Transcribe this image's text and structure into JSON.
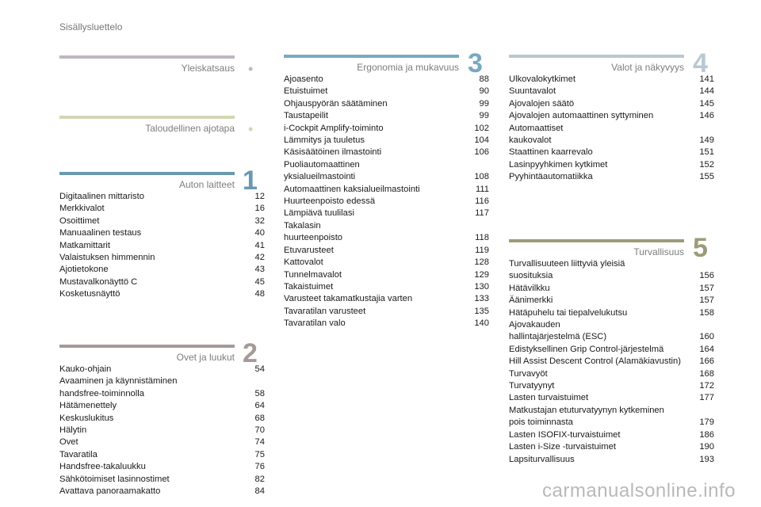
{
  "header": {
    "label": "Sisällysluettelo"
  },
  "sections": {
    "yleiskatsaus": {
      "title": "Yleiskatsaus",
      "marker": "•",
      "color": "#bfb6c0"
    },
    "taloudellinen": {
      "title": "Taloudellinen ajotapa",
      "marker": "•",
      "color": "#d4d6b4"
    },
    "auton_laitteet": {
      "title": "Auton laitteet",
      "number": "1",
      "color": "#6a98b0",
      "entries": [
        {
          "title": "Digitaalinen mittaristo",
          "page": "12"
        },
        {
          "title": "Merkkivalot",
          "page": "16"
        },
        {
          "title": "Osoittimet",
          "page": "32"
        },
        {
          "title": "Manuaalinen testaus",
          "page": "40"
        },
        {
          "title": "Matkamittarit",
          "page": "41"
        },
        {
          "title": "Valaistuksen himmennin",
          "page": "42"
        },
        {
          "title": "Ajotietokone",
          "page": "43"
        },
        {
          "title": "Mustavalkonäyttö C",
          "page": "45"
        },
        {
          "title": "Kosketusnäyttö",
          "page": "48"
        }
      ]
    },
    "ovet_ja_luukut": {
      "title": "Ovet ja luukut",
      "number": "2",
      "color": "#a59a97",
      "entries": [
        {
          "title": "Kauko-ohjain",
          "page": "54"
        },
        {
          "title": "Avaaminen ja käynnistäminen\n   handsfree-toiminnolla",
          "page": "58"
        },
        {
          "title": "Hätämenettely",
          "page": "64"
        },
        {
          "title": "Keskuslukitus",
          "page": "68"
        },
        {
          "title": "Hälytin",
          "page": "70"
        },
        {
          "title": "Ovet",
          "page": "74"
        },
        {
          "title": "Tavaratila",
          "page": "75"
        },
        {
          "title": "Handsfree-takaluukku",
          "page": "76"
        },
        {
          "title": "Sähkötoimiset lasinnostimet",
          "page": "82"
        },
        {
          "title": "Avattava panoraamakatto",
          "page": "84"
        }
      ]
    },
    "ergonomia": {
      "title": "Ergonomia ja mukavuus",
      "number": "3",
      "color": "#7aa8c2",
      "entries": [
        {
          "title": "Ajoasento",
          "page": "88"
        },
        {
          "title": "Etuistuimet",
          "page": "90"
        },
        {
          "title": "Ohjauspyörän säätäminen",
          "page": "99"
        },
        {
          "title": "Taustapeilit",
          "page": "99"
        },
        {
          "title": "i-Cockpit Amplify-toiminto",
          "page": "102"
        },
        {
          "title": "Lämmitys ja tuuletus",
          "page": "104"
        },
        {
          "title": "Käsisäätöinen ilmastointi",
          "page": "106"
        },
        {
          "title": "Puoliautomaattinen\n   yksialueilmastointi",
          "page": "108"
        },
        {
          "title": "Automaattinen kaksialueilmastointi",
          "page": "111"
        },
        {
          "title": "Huurteenpoisto edessä",
          "page": "116"
        },
        {
          "title": "Lämpiävä tuulilasi",
          "page": "117"
        },
        {
          "title": "Takalasin\n   huurteenpoisto",
          "page": "118"
        },
        {
          "title": "Etuvarusteet",
          "page": "119"
        },
        {
          "title": "Kattovalot",
          "page": "128"
        },
        {
          "title": "Tunnelmavalot",
          "page": "129"
        },
        {
          "title": "Takaistuimet",
          "page": "130"
        },
        {
          "title": "Varusteet takamatkustajia varten",
          "page": "133"
        },
        {
          "title": "Tavaratilan varusteet",
          "page": "135"
        },
        {
          "title": "Tavaratilan valo",
          "page": "140"
        }
      ]
    },
    "valot": {
      "title": "Valot ja näkyvyys",
      "number": "4",
      "color": "#b8c8d2",
      "entries": [
        {
          "title": "Ulkovalokytkimet",
          "page": "141"
        },
        {
          "title": "Suuntavalot",
          "page": "144"
        },
        {
          "title": "Ajovalojen säätö",
          "page": "145"
        },
        {
          "title": "Ajovalojen automaattinen syttyminen",
          "page": "146"
        },
        {
          "title": "Automaattiset\n   kaukovalot",
          "page": "149"
        },
        {
          "title": "Staattinen kaarrevalo",
          "page": "151"
        },
        {
          "title": "Lasinpyyhkimen kytkimet",
          "page": "152"
        },
        {
          "title": "Pyyhintäautomatiikka",
          "page": "155"
        }
      ]
    },
    "turvallisuus": {
      "title": "Turvallisuus",
      "number": "5",
      "color": "#9b9d78",
      "entries": [
        {
          "title": "Turvallisuuteen liittyviä yleisiä\n   suosituksia",
          "page": "156"
        },
        {
          "title": "Hätävilkku",
          "page": "157"
        },
        {
          "title": "Äänimerkki",
          "page": "157"
        },
        {
          "title": "Hätäpuhelu tai tiepalvelukutsu",
          "page": "158"
        },
        {
          "title": "Ajovakauden\n   hallintajärjestelmä (ESC)",
          "page": "160"
        },
        {
          "title": "Edistyksellinen Grip Control-järjestelmä",
          "page": "164"
        },
        {
          "title": "Hill Assist Descent Control (Alamäkiavustin)",
          "page": "166"
        },
        {
          "title": "Turvavyöt",
          "page": "168"
        },
        {
          "title": "Turvatyynyt",
          "page": "172"
        },
        {
          "title": "Lasten turvaistuimet",
          "page": "177"
        },
        {
          "title": "Matkustajan etuturvatyynyn kytkeminen\n   pois toiminnasta",
          "page": "179"
        },
        {
          "title": "Lasten ISOFIX-turvaistuimet",
          "page": "186"
        },
        {
          "title": "Lasten i-Size -turvaistuimet",
          "page": "190"
        },
        {
          "title": "Lapsiturvallisuus",
          "page": "193"
        }
      ]
    }
  },
  "watermark": "carmanualsonline.info"
}
